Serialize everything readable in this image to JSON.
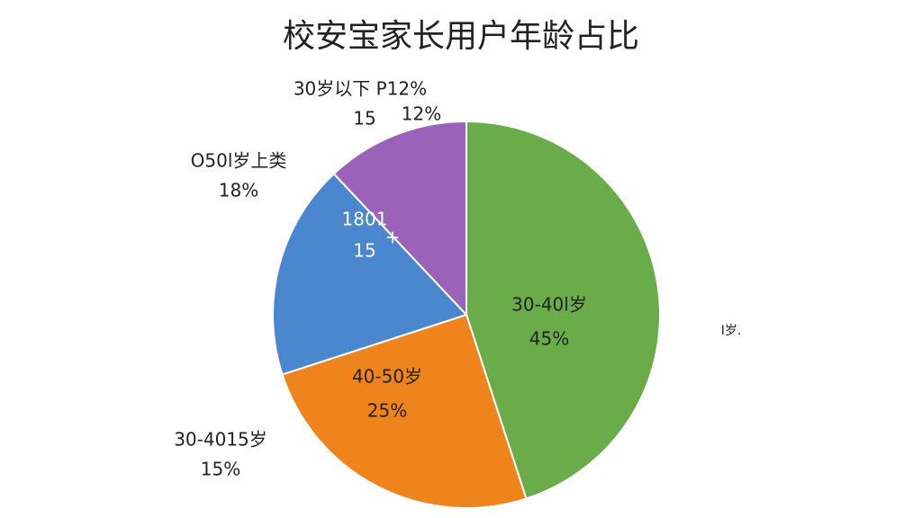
{
  "chart_data": {
    "type": "pie",
    "title": "校安宝家长用户年龄占比",
    "categories": [
      "30-40l岁",
      "40-50岁",
      "O50l岁上类",
      "30岁以下 P12%"
    ],
    "values": [
      45,
      25,
      18,
      12
    ],
    "value_labels": [
      "45%",
      "25%",
      "18%",
      "12%"
    ],
    "colors": [
      "#6aac4a",
      "#f0841c",
      "#4a87cf",
      "#9b62b9"
    ],
    "annotations": [
      "1801",
      "15",
      "+",
      "15",
      "30-4015岁",
      "15%",
      "Ⅰ岁."
    ]
  }
}
